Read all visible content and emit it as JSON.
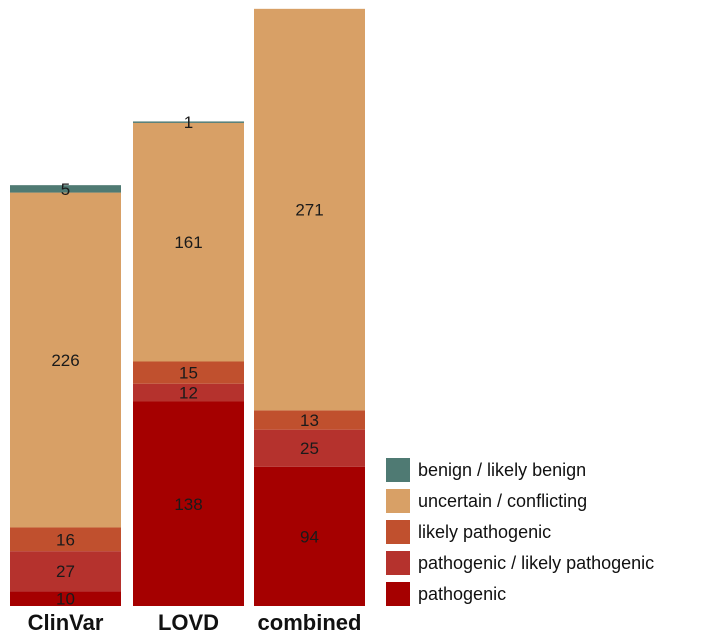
{
  "chart_data": {
    "type": "bar",
    "stacked": true,
    "title": "",
    "xlabel": "",
    "ylabel": "",
    "categories": [
      "ClinVar",
      "LOVD",
      "combined"
    ],
    "series": [
      {
        "name": "pathogenic",
        "color": "#a50000",
        "values": [
          10,
          138,
          94
        ]
      },
      {
        "name": "pathogenic / likely pathogenic",
        "color": "#b5322d",
        "values": [
          27,
          12,
          25
        ]
      },
      {
        "name": "likely pathogenic",
        "color": "#c0502e",
        "values": [
          16,
          15,
          13
        ]
      },
      {
        "name": "uncertain / conflicting",
        "color": "#d8a066",
        "values": [
          226,
          161,
          271
        ]
      },
      {
        "name": "benign / likely benign",
        "color": "#4f7a73",
        "values": [
          5,
          1,
          0
        ]
      }
    ],
    "legend_order": [
      "benign / likely benign",
      "uncertain / conflicting",
      "likely pathogenic",
      "pathogenic / likely pathogenic",
      "pathogenic"
    ],
    "legend_position": "bottom-right",
    "grid": false,
    "ylim": [
      0,
      403
    ]
  }
}
